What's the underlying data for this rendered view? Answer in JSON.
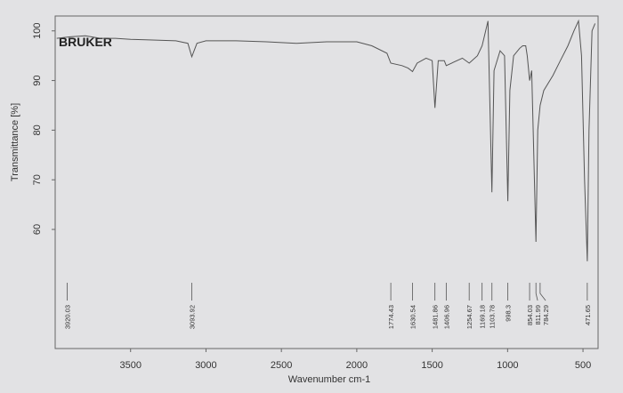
{
  "chart_data": {
    "type": "line",
    "brand": "BRUKER",
    "x_label": "Wavenumber cm-1",
    "y_label": "Transmittance [%]",
    "color": "#555555",
    "xlim": [
      4000,
      400
    ],
    "ylim": [
      36,
      103
    ],
    "xticks": [
      3500,
      3000,
      2500,
      2000,
      1500,
      1000,
      500
    ],
    "yticks": [
      60,
      70,
      80,
      90,
      100
    ],
    "x": [
      3990,
      3900,
      3800,
      3700,
      3600,
      3500,
      3400,
      3200,
      3120,
      3093.92,
      3060,
      3000,
      2800,
      2600,
      2400,
      2200,
      2000,
      1900,
      1800,
      1774.43,
      1700,
      1660,
      1630.54,
      1600,
      1540,
      1500,
      1481.86,
      1460,
      1420,
      1406.96,
      1300,
      1254.67,
      1200,
      1169.18,
      1130,
      1103.78,
      1090,
      1050,
      1020,
      998.3,
      985,
      960,
      920,
      900,
      880,
      870,
      854.03,
      840,
      811.99,
      800,
      784.29,
      760,
      700,
      650,
      600,
      560,
      530,
      510,
      490,
      471.65,
      460,
      440,
      420
    ],
    "values": [
      98.5,
      98.8,
      99,
      98.5,
      98.5,
      98.3,
      98.2,
      98,
      97.5,
      94.8,
      97.5,
      98,
      98,
      97.8,
      97.5,
      97.8,
      97.8,
      97,
      95.5,
      93.5,
      93,
      92.5,
      91.8,
      93.5,
      94.5,
      94,
      84.5,
      94,
      94,
      93,
      94.5,
      93.5,
      95,
      97,
      102,
      67.5,
      92,
      96,
      95,
      65.7,
      88,
      95,
      96.5,
      97,
      97,
      95,
      90,
      92,
      57.5,
      80,
      85,
      88,
      91,
      94,
      97,
      100,
      102,
      95,
      70,
      53.6,
      80,
      100,
      101.5
    ],
    "peaks": [
      3920.03,
      3093.92,
      1774.43,
      1630.54,
      1481.86,
      1406.96,
      1254.67,
      1169.18,
      1103.78,
      998.3,
      854.03,
      811.99,
      784.29,
      471.65
    ]
  }
}
